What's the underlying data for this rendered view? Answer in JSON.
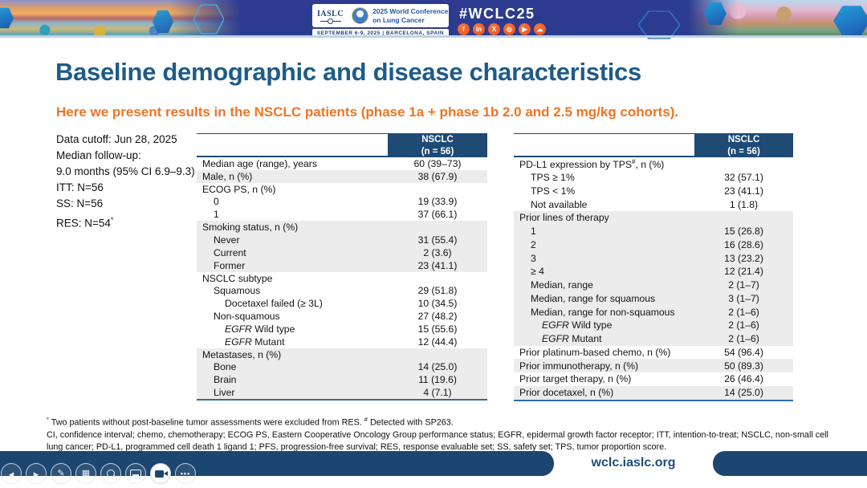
{
  "colors": {
    "banner_blue": "#2c3b8f",
    "table_header_navy": "#1e4a74",
    "footer_navy": "#1c4670",
    "title_blue": "#1e5b88",
    "subtitle_orange": "#ee7524",
    "row_shade_gray": "#ececec",
    "social_orange": "#ec5a2a"
  },
  "banner": {
    "iaslc_logo": "IASLC",
    "conference_line1": "2025 World Conference",
    "conference_line2": "on Lung Cancer",
    "date_location": "SEPTEMBER 6-9, 2025   |   BARCELONA, SPAIN",
    "hashtag": "#WCLC25",
    "social_icons": [
      {
        "name": "facebook-icon",
        "glyph": "f"
      },
      {
        "name": "linkedin-icon",
        "glyph": "in"
      },
      {
        "name": "x-twitter-icon",
        "glyph": "X"
      },
      {
        "name": "instagram-icon",
        "glyph": "◎"
      },
      {
        "name": "youtube-icon",
        "glyph": "▶"
      },
      {
        "name": "wechat-icon",
        "glyph": "☁"
      }
    ]
  },
  "slide": {
    "title": "Baseline demographic and disease characteristics",
    "subtitle": "Here we present results in the NSCLC patients (phase 1a + phase 1b 2.0 and 2.5 mg/kg cohorts).",
    "info_lines": [
      {
        "text": "Data cutoff: Jun 28, 2025"
      },
      {
        "text": "Median follow-up:"
      },
      {
        "text": "9.0 months (95% CI 6.9–9.3)"
      },
      {
        "text": "ITT: N=56"
      },
      {
        "text": "SS: N=56"
      },
      {
        "text": "RES: N=54",
        "sup": "*"
      }
    ]
  },
  "tables": {
    "left": {
      "header_line1": "NSCLC",
      "header_line2": "(n = 56)",
      "rows": [
        {
          "label": "Median age (range), years",
          "value": "60 (39–73)",
          "indent": 0,
          "shade": false
        },
        {
          "label": "Male, n (%)",
          "value": "38 (67.9)",
          "indent": 0,
          "shade": true
        },
        {
          "label": "ECOG PS, n (%)",
          "value": "",
          "indent": 0,
          "shade": false
        },
        {
          "label": "0",
          "value": "19 (33.9)",
          "indent": 1,
          "shade": false
        },
        {
          "label": "1",
          "value": "37 (66.1)",
          "indent": 1,
          "shade": false
        },
        {
          "label": "Smoking status, n (%)",
          "value": "",
          "indent": 0,
          "shade": true
        },
        {
          "label": "Never",
          "value": "31 (55.4)",
          "indent": 1,
          "shade": true
        },
        {
          "label": "Current",
          "value": "2 (3.6)",
          "indent": 1,
          "shade": true
        },
        {
          "label": "Former",
          "value": "23 (41.1)",
          "indent": 1,
          "shade": true
        },
        {
          "label": "NSCLC subtype",
          "value": "",
          "indent": 0,
          "shade": false
        },
        {
          "label": "Squamous",
          "value": "29 (51.8)",
          "indent": 1,
          "shade": false
        },
        {
          "label": "Docetaxel failed (≥ 3L)",
          "value": "10 (34.5)",
          "indent": 2,
          "shade": false
        },
        {
          "label": "Non-squamous",
          "value": "27 (48.2)",
          "indent": 1,
          "shade": false
        },
        {
          "em": "EGFR",
          "label": "Wild type",
          "value": "15 (55.6)",
          "indent": 2,
          "shade": false
        },
        {
          "em": "EGFR",
          "label": "Mutant",
          "value": "12 (44.4)",
          "indent": 2,
          "shade": false
        },
        {
          "label": "Metastases, n (%)",
          "value": "",
          "indent": 0,
          "shade": true
        },
        {
          "label": "Bone",
          "value": "14 (25.0)",
          "indent": 1,
          "shade": true
        },
        {
          "label": "Brain",
          "value": "11 (19.6)",
          "indent": 1,
          "shade": true
        },
        {
          "label": "Liver",
          "value": "4 (7.1)",
          "indent": 1,
          "shade": true
        }
      ]
    },
    "right": {
      "header_line1": "NSCLC",
      "header_line2": "(n = 56)",
      "rows": [
        {
          "label": "PD-L1 expression by TPS",
          "sup": "#",
          "label2": ", n (%)",
          "value": "",
          "indent": 0,
          "shade": false
        },
        {
          "label": "TPS ≥ 1%",
          "value": "32 (57.1)",
          "indent": 1,
          "shade": false
        },
        {
          "label": "TPS < 1%",
          "value": "23 (41.1)",
          "indent": 1,
          "shade": false
        },
        {
          "label": "Not available",
          "value": "1 (1.8)",
          "indent": 1,
          "shade": false
        },
        {
          "label": "Prior lines of therapy",
          "value": "",
          "indent": 0,
          "shade": true
        },
        {
          "label": "1",
          "value": "15 (26.8)",
          "indent": 1,
          "shade": true
        },
        {
          "label": "2",
          "value": "16 (28.6)",
          "indent": 1,
          "shade": true
        },
        {
          "label": "3",
          "value": "13 (23.2)",
          "indent": 1,
          "shade": true
        },
        {
          "label": "≥ 4",
          "value": "12 (21.4)",
          "indent": 1,
          "shade": true
        },
        {
          "label": "Median, range",
          "value": "2 (1–7)",
          "indent": 1,
          "shade": true
        },
        {
          "label": "Median, range for squamous",
          "value": "3 (1–7)",
          "indent": 1,
          "shade": true
        },
        {
          "label": "Median, range for non-squamous",
          "value": "2 (1–6)",
          "indent": 1,
          "shade": true
        },
        {
          "em": "EGFR",
          "label": "Wild type",
          "value": "2 (1–6)",
          "indent": 2,
          "shade": true
        },
        {
          "em": "EGFR",
          "label": "Mutant",
          "value": "2 (1–6)",
          "indent": 2,
          "shade": true
        },
        {
          "label": "Prior platinum-based chemo, n (%)",
          "value": "54 (96.4)",
          "indent": 0,
          "shade": false
        },
        {
          "label": "Prior immunotherapy, n (%)",
          "value": "50 (89.3)",
          "indent": 0,
          "shade": true
        },
        {
          "label": "Prior target therapy, n (%)",
          "value": "26 (46.4)",
          "indent": 0,
          "shade": false
        },
        {
          "label": "Prior docetaxel, n (%)",
          "value": "14 (25.0)",
          "indent": 0,
          "shade": true
        }
      ]
    }
  },
  "footnote": {
    "sup1": "*",
    "text1": " Two patients without post-baseline tumor assessments were excluded from RES. ",
    "sup2": "#",
    "text2": " Detected with SP263.",
    "abbreviations": "CI, confidence interval; chemo, chemotherapy; ECOG PS, Eastern Cooperative Oncology Group performance status; EGFR, epidermal growth factor receptor; ITT, intention-to-treat; NSCLC, non-small cell lung cancer; PD-L1, programmed cell death 1 ligand 1; PFS, progression-free survival; RES, response evaluable set; SS, safety set; TPS, tumor proportion score."
  },
  "footer": {
    "url": "wclc.iaslc.org"
  },
  "toolbar": {
    "buttons": [
      {
        "name": "previous-slide-button",
        "kind": "glyph",
        "glyph": "◂",
        "size": "g13"
      },
      {
        "name": "next-slide-button",
        "kind": "glyph",
        "glyph": "▸",
        "size": "g13"
      },
      {
        "name": "pen-button",
        "kind": "glyph",
        "glyph": "✎",
        "size": "g11"
      },
      {
        "name": "see-all-slides-button",
        "kind": "glyph",
        "glyph": "▦",
        "size": "g11"
      },
      {
        "name": "zoom-button",
        "kind": "css",
        "css": "ic-zoom"
      },
      {
        "name": "captions-button",
        "kind": "css",
        "css": "ic-captions"
      },
      {
        "name": "camera-button",
        "kind": "css",
        "css": "ic-camera",
        "active": true
      },
      {
        "name": "more-options-button",
        "kind": "glyph",
        "glyph": "•••",
        "size": "ic-more"
      }
    ]
  }
}
